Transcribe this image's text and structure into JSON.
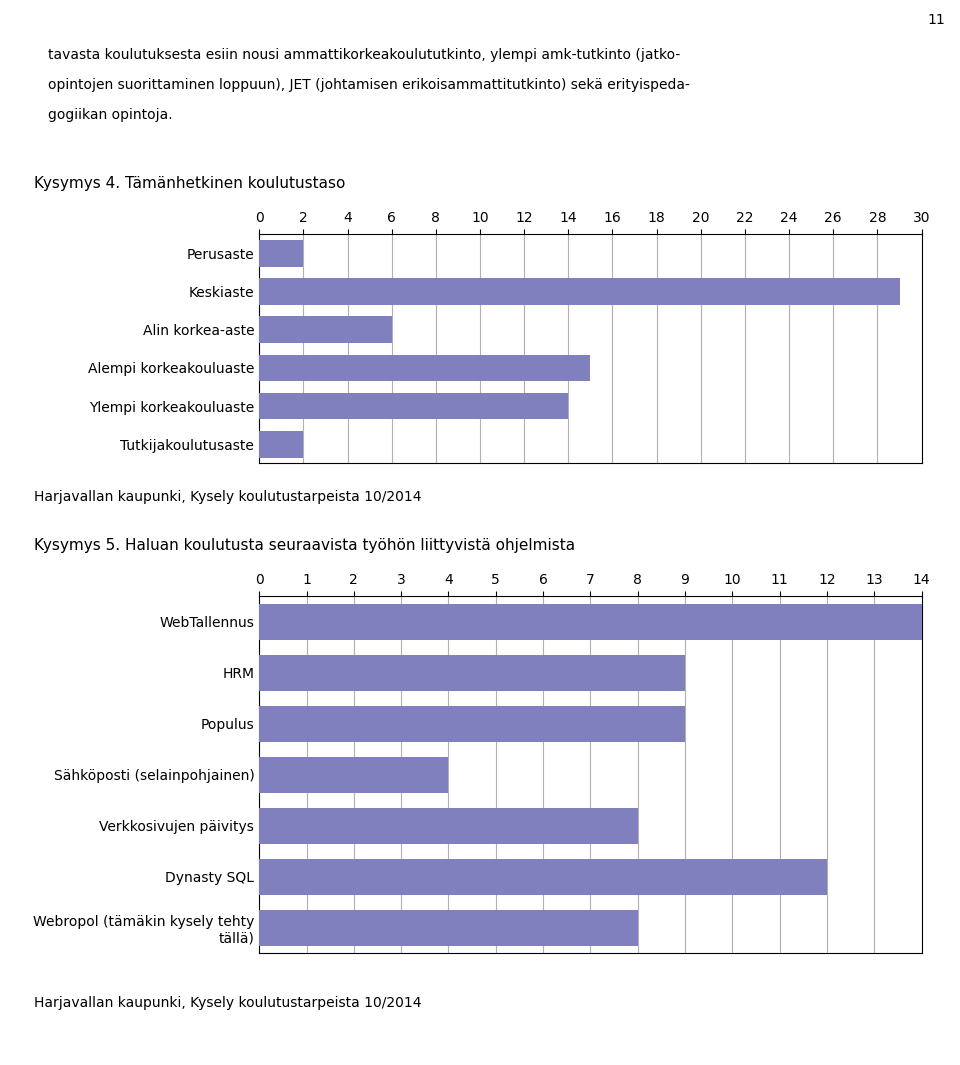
{
  "annotations": [
    "11",
    "tavasta koulutuksesta esiin nousi ammattikorkeakoulututkinto, ylempi amk-tutkinto (jatko-",
    "opintojen suorittaminen loppuun), JET (johtamisen erikoisammattitutkinto) sekä erityispeda-",
    "gogiikan opintoja."
  ],
  "chart_data": [
    {
      "type": "bar",
      "orientation": "horizontal",
      "title": "Kysymys 4. Tämänhetkinen koulutustaso",
      "categories": [
        "Perusaste",
        "Keskiaste",
        "Alin korkea-aste",
        "Alempi korkeakouluaste",
        "Ylempi korkeakouluaste",
        "Tutkijakoulutusaste"
      ],
      "values": [
        2,
        29,
        6,
        15,
        14,
        2
      ],
      "color": "#8080bf",
      "xlim": [
        0,
        30
      ],
      "xticks": [
        0,
        2,
        4,
        6,
        8,
        10,
        12,
        14,
        16,
        18,
        20,
        22,
        24,
        26,
        28,
        30
      ],
      "grid": true,
      "annotations": [
        "Harjavallan kaupunki, Kysely koulutustarpeista 10/2014"
      ]
    },
    {
      "type": "bar",
      "orientation": "horizontal",
      "title": "Kysymys 5. Haluan koulutusta seuraavista työhön liittyvistä ohjelmista",
      "categories": [
        "WebTallennus",
        "HRM",
        "Populus",
        "Sähköposti (selainpohjainen)",
        "Verkkosivujen päivitys",
        "Dynasty SQL",
        "Webropol (tämäkin kysely tehty\ntällä)"
      ],
      "values": [
        14,
        9,
        9,
        4,
        8,
        12,
        8
      ],
      "color": "#8080bf",
      "xlim": [
        0,
        14
      ],
      "xticks": [
        0,
        1,
        2,
        3,
        4,
        5,
        6,
        7,
        8,
        9,
        10,
        11,
        12,
        13,
        14
      ],
      "grid": true,
      "annotations": [
        "Harjavallan kaupunki, Kysely koulutustarpeista 10/2014"
      ]
    }
  ]
}
